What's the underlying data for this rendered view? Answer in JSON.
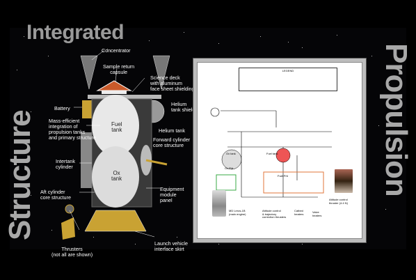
{
  "titles": {
    "left_top": "Integrated",
    "left_vertical": "Structure",
    "right_vertical": "Propulsion"
  },
  "spacecraft_labels": {
    "concentrator": "Concentrator",
    "sample_return": "Sample return\ncapsule",
    "science_deck": "Science deck\nwith aluminum\nface sheet shielding",
    "battery": "Battery",
    "helium_shield": "Helium\ntank shield",
    "mass_efficient": "Mass-efficient\nintegration of\npropulsion tanks\nand primary structure",
    "helium_tank": "Helium tank",
    "fuel_tank": "Fuel\ntank",
    "forward_cylinder": "Forward cylinder\ncore structure",
    "intertank": "Intertank\ncylinder",
    "ox_tank": "Ox\ntank",
    "aft_cylinder": "Aft cylinder\ncore structure",
    "equipment_panel": "Equipment\nmodule\npanel",
    "thrusters": "Thrusters\n(not all are shown)",
    "launch_skirt": "Launch vehicle\ninterface skirt"
  },
  "schematic": {
    "legend_title": "LEGEND",
    "ox_pd": "Ox P/d",
    "fuel_pd": "Fuel P/d",
    "ox_tank": "Ox tank",
    "fuel_tank": "Fuel tank",
    "main_engine": "MD Leros-1B\n(main engine)",
    "thrusters": "Attitude control\n& trajectory\ncorrection thrusters",
    "cat_heaters": "Catbed\nheaters",
    "valve_heaters": "Valve\nheaters",
    "thruster_photo": "Attitude control\nthruster (4.4 N)"
  },
  "colors": {
    "background": "#000000",
    "title_gray": "#a8a8a8",
    "panel_border": "#bdbdbd",
    "ox_box": "#3aa845",
    "fuel_box": "#e0763a"
  }
}
